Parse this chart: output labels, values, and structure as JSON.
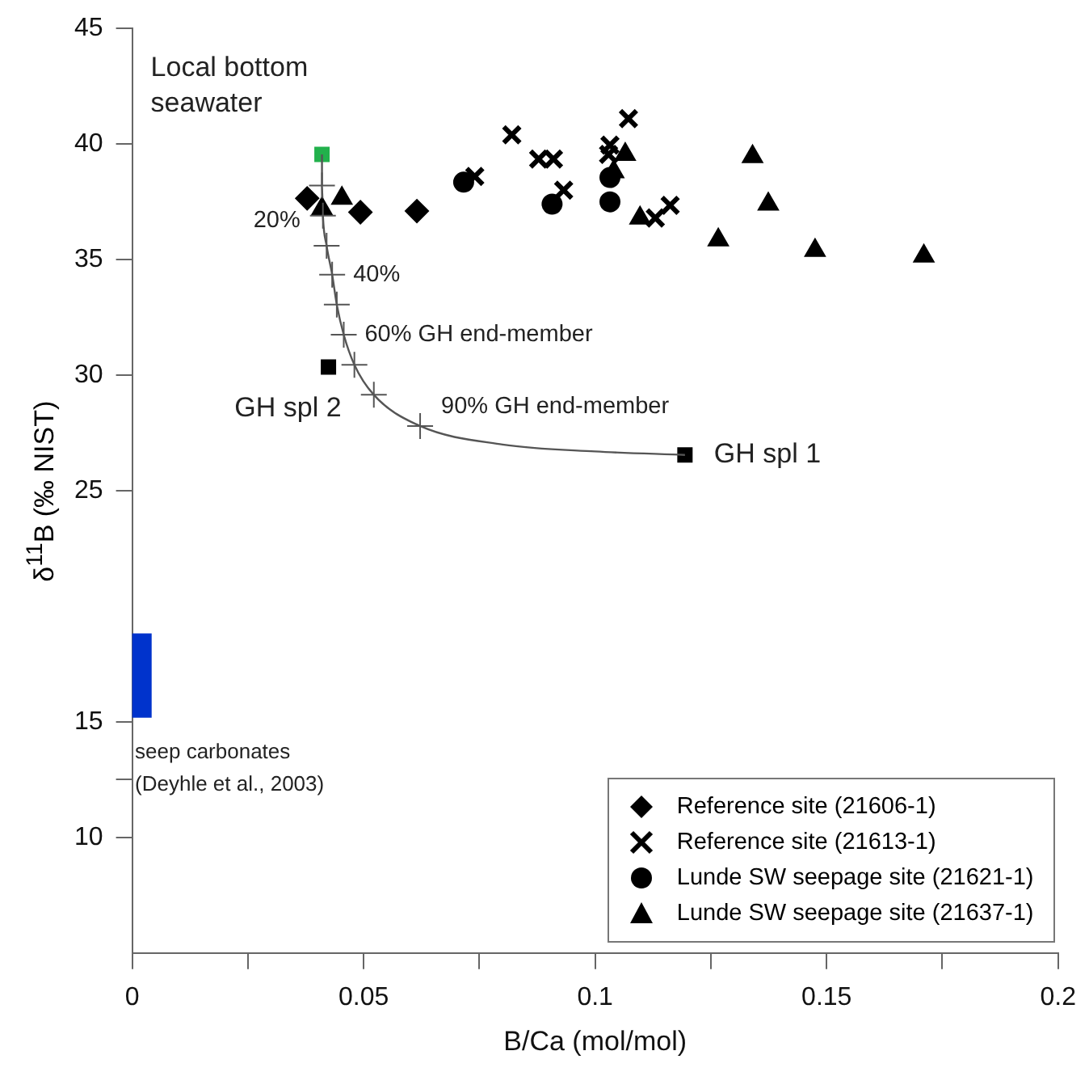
{
  "chart_data": {
    "type": "scatter",
    "xlabel": "B/Ca (mol/mol)",
    "ylabel": "δ$^{11}$B (‰ NIST)",
    "xlim": [
      0,
      0.2
    ],
    "xticks": [
      0,
      {
        "value": 0.025,
        "label": null
      },
      0.05,
      {
        "value": 0.075,
        "label": null
      },
      0.1,
      {
        "value": 0.125,
        "label": null
      },
      0.15,
      {
        "value": 0.175,
        "label": null
      },
      0.2
    ],
    "ylim": [
      5,
      45
    ],
    "yticks": [
      10,
      {
        "value": 12.5,
        "label": null
      },
      15,
      25,
      30,
      35,
      40,
      45
    ],
    "grid": false,
    "legend": "bottom right",
    "series": [
      {
        "name": "Reference site (21606-1)",
        "color": "#000000",
        "marker": "diamond",
        "x": [
          0.0378,
          0.0493,
          0.0615
        ],
        "values": [
          37.65,
          37.05,
          37.1
        ]
      },
      {
        "name": "Reference site (21613-1)",
        "color": "#000000",
        "marker": "cross",
        "x": [
          0.074,
          0.082,
          0.0878,
          0.091,
          0.0932,
          0.1032,
          0.1029,
          0.1072,
          0.1162,
          0.113
        ],
        "values": [
          38.6,
          40.4,
          39.35,
          39.35,
          38.0,
          39.95,
          39.55,
          41.1,
          37.35,
          36.8
        ]
      },
      {
        "name": "Lunde SW seepage site (21621-1)",
        "color": "#000000",
        "marker": "circle",
        "x": [
          0.0716,
          0.0907,
          0.1032,
          0.1032
        ],
        "values": [
          38.35,
          37.4,
          38.55,
          37.5
        ]
      },
      {
        "name": "Lunde SW seepage site (21637-1)",
        "color": "#000000",
        "marker": "triangle",
        "x": [
          0.0453,
          0.041,
          0.1065,
          0.134,
          0.1097,
          0.1374,
          0.1266,
          0.1475,
          0.171,
          0.104
        ],
        "values": [
          37.65,
          37.2,
          39.55,
          39.45,
          36.8,
          37.4,
          35.85,
          35.4,
          35.15,
          38.8
        ]
      },
      {
        "type": "line",
        "color": "#555555",
        "marker": "none",
        "x": [
          0.041,
          0.041,
          0.0412,
          0.042,
          0.0432,
          0.0442,
          0.0457,
          0.048,
          0.0522,
          0.0622,
          0.08,
          0.1,
          0.1194
        ],
        "values": [
          39.55,
          38.2,
          36.9,
          35.6,
          34.35,
          33.05,
          31.75,
          30.45,
          29.15,
          27.8,
          27.0,
          26.7,
          26.55
        ]
      },
      {
        "color": "#555555",
        "marker": "plus",
        "x": [
          0.041,
          0.0412,
          0.042,
          0.0432,
          0.0442,
          0.0457,
          0.048,
          0.0522,
          0.0622
        ],
        "values": [
          38.2,
          36.9,
          35.6,
          34.35,
          33.05,
          31.75,
          30.45,
          29.15,
          27.8
        ]
      },
      {
        "color": "#22b14c",
        "marker": "square",
        "x": [
          0.041
        ],
        "values": [
          39.55
        ]
      },
      {
        "color": "#000000",
        "marker": "square",
        "x": [
          0.0424,
          0.1194
        ],
        "values": [
          30.35,
          26.55
        ]
      },
      {
        "type": "bar",
        "color": "#0033cc",
        "x": [
          0.002
        ],
        "base": [
          15.2
        ],
        "values": [
          3.6
        ]
      }
    ],
    "annotations": [
      {
        "text": "Local bottom seawater",
        "x": 0.041,
        "y": 39.55
      },
      {
        "text": "20%",
        "x": 0.0412,
        "y": 36.9
      },
      {
        "text": "40%",
        "x": 0.0432,
        "y": 34.35
      },
      {
        "text": "60% GH end-member",
        "x": 0.0457,
        "y": 31.75
      },
      {
        "text": "90% GH end-member",
        "x": 0.0622,
        "y": 27.8
      },
      {
        "text": "GH spl 2",
        "x": 0.0424,
        "y": 30.35
      },
      {
        "text": "GH spl 1",
        "x": 0.1194,
        "y": 26.55
      },
      {
        "text": "seep carbonates (Deyhle et al., 2003)",
        "x": 0.002,
        "y": 15.2
      }
    ]
  }
}
